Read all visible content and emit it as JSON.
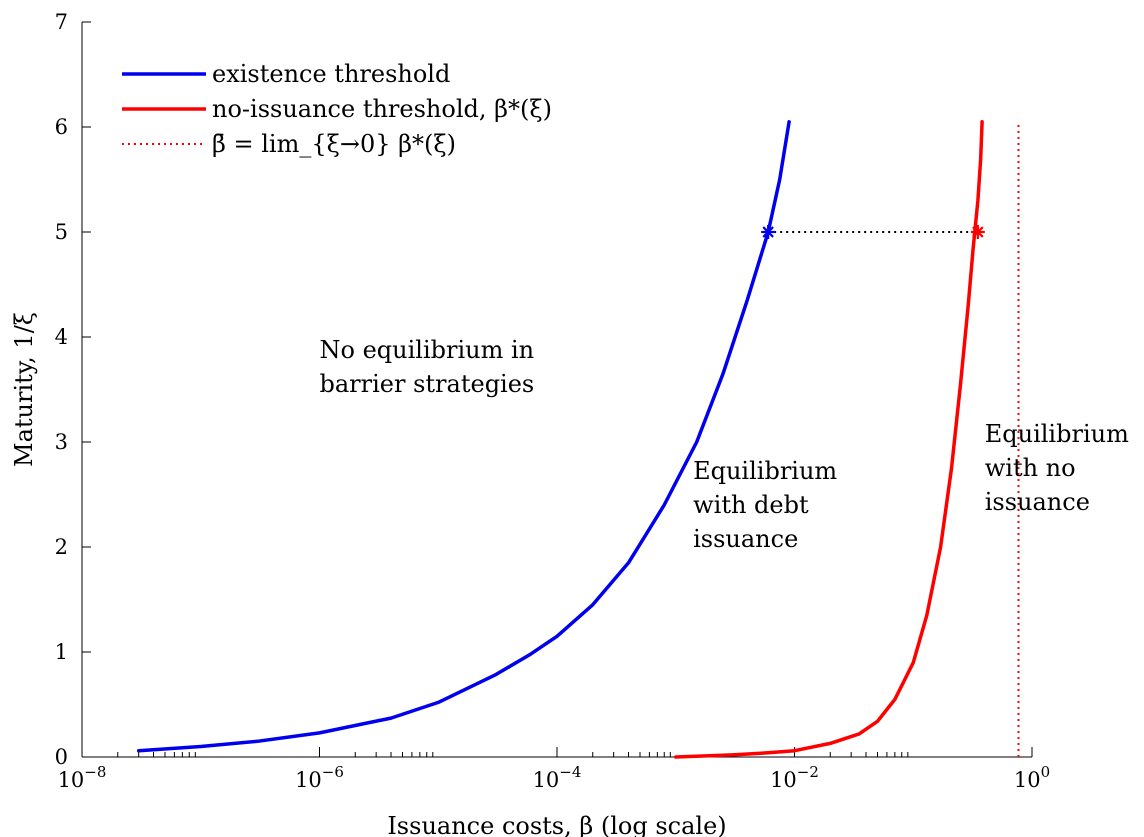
{
  "chart_data": {
    "type": "line",
    "xscale": "log",
    "xlim": [
      1e-08,
      1
    ],
    "ylim": [
      0,
      7
    ],
    "xlabel": "Issuance costs, β (log scale)",
    "ylabel": "Maturity, 1/ξ",
    "grid": false,
    "legend_position": "top-left",
    "x_ticks": [
      1e-08,
      1e-06,
      0.0001,
      0.01,
      1
    ],
    "x_tick_labels": [
      {
        "base": "10",
        "exp": "−8"
      },
      {
        "base": "10",
        "exp": "−6"
      },
      {
        "base": "10",
        "exp": "−4"
      },
      {
        "base": "10",
        "exp": "−2"
      },
      {
        "base": "10",
        "exp": "0"
      }
    ],
    "y_ticks": [
      0,
      1,
      2,
      3,
      4,
      5,
      6,
      7
    ],
    "y_tick_labels": [
      "0",
      "1",
      "2",
      "3",
      "4",
      "5",
      "6",
      "7"
    ],
    "series": [
      {
        "name": "existence threshold",
        "color": "#0000ee",
        "style": "solid",
        "x": [
          3e-08,
          1e-07,
          3e-07,
          1e-06,
          4e-06,
          1e-05,
          3e-05,
          6e-05,
          0.0001,
          0.0002,
          0.0004,
          0.0008,
          0.0015,
          0.0025,
          0.004,
          0.006,
          0.0075,
          0.009
        ],
        "y": [
          0.06,
          0.1,
          0.15,
          0.23,
          0.37,
          0.52,
          0.78,
          0.98,
          1.15,
          1.45,
          1.85,
          2.4,
          3.0,
          3.65,
          4.35,
          5.0,
          5.5,
          6.05
        ]
      },
      {
        "name": "no-issuance threshold, β*(ξ)",
        "color": "#ff0000",
        "style": "solid",
        "x": [
          0.001,
          0.003,
          0.006,
          0.01,
          0.02,
          0.035,
          0.05,
          0.07,
          0.1,
          0.13,
          0.17,
          0.21,
          0.25,
          0.29,
          0.32,
          0.35,
          0.37,
          0.38
        ],
        "y": [
          0.0,
          0.02,
          0.04,
          0.06,
          0.13,
          0.22,
          0.34,
          0.55,
          0.9,
          1.35,
          2.0,
          2.75,
          3.55,
          4.3,
          4.85,
          5.3,
          5.7,
          6.05
        ]
      },
      {
        "name": "β̄ = lim_{ξ→0} β*(ξ)",
        "color": "#ff0000",
        "style": "dotted",
        "x": [
          0.77,
          0.77
        ],
        "y": [
          0,
          6.05
        ]
      }
    ],
    "markers": [
      {
        "x": 0.006,
        "y": 5.0,
        "color": "#0000ee",
        "symbol": "asterisk"
      },
      {
        "x": 0.35,
        "y": 5.0,
        "color": "#ff0000",
        "symbol": "asterisk"
      }
    ],
    "connector": {
      "x": [
        0.006,
        0.35
      ],
      "y": 5.0,
      "color": "#000000",
      "style": "dotted"
    },
    "legend": [
      {
        "label": "existence threshold",
        "color": "#0000ee",
        "style": "solid"
      },
      {
        "label": "no-issuance threshold, β*(ξ)",
        "color": "#ff0000",
        "style": "solid"
      },
      {
        "label": "β̄ = lim_{ξ→0} β*(ξ)",
        "color": "#ff0000",
        "style": "dotted"
      }
    ],
    "annotations": [
      {
        "lines": [
          "No equilibrium in",
          "barrier strategies"
        ],
        "x": 1e-06,
        "y": 3.8
      },
      {
        "lines": [
          "Equilibrium",
          "with debt",
          "issuance"
        ],
        "x": 0.0014,
        "y": 2.65
      },
      {
        "lines": [
          "Equilibrium",
          "with no",
          "issuance"
        ],
        "x": 0.4,
        "y": 3.0
      }
    ]
  }
}
